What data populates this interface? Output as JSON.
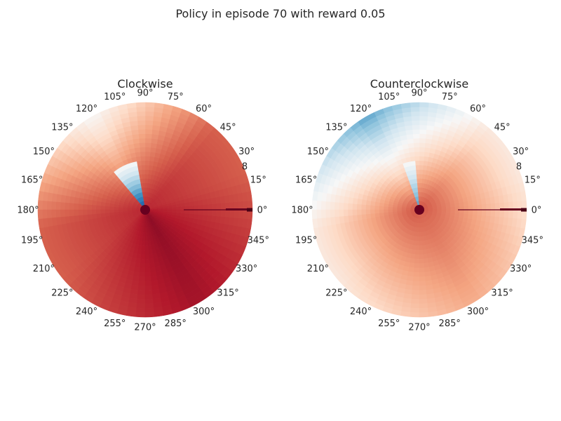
{
  "figure": {
    "suptitle": "Policy in episode 70 with reward 0.05"
  },
  "chart_data": [
    {
      "type": "heatmap",
      "projection": "polar",
      "title": "Clockwise",
      "angle_tick_labels": [
        "0°",
        "15°",
        "30°",
        "45°",
        "60°",
        "75°",
        "90°",
        "105°",
        "120°",
        "135°",
        "150°",
        "165°",
        "180°",
        "195°",
        "210°",
        "225°",
        "240°",
        "255°",
        "270°",
        "285°",
        "300°",
        "315°",
        "330°",
        "345°"
      ],
      "radial_tick_label": "8",
      "colormap": "RdBu_r",
      "grid": false,
      "radial_range": [
        0,
        10
      ],
      "dominant_value": 0.92,
      "field": {
        "base_near": 0.88,
        "base_far": 0.8,
        "upper_left_light_level": 0.58,
        "blue_wedge_angle_deg": [
          100,
          128
        ],
        "blue_wedge_min_value": 0.05,
        "dark_lower_right_value": 1.0
      },
      "marker_line": {
        "angle_deg": 0,
        "from_r": 3.6,
        "to_r": 10,
        "color": "#67001f"
      }
    },
    {
      "type": "heatmap",
      "projection": "polar",
      "title": "Counterclockwise",
      "angle_tick_labels": [
        "0°",
        "15°",
        "30°",
        "45°",
        "60°",
        "75°",
        "90°",
        "105°",
        "120°",
        "135°",
        "150°",
        "165°",
        "180°",
        "195°",
        "210°",
        "225°",
        "240°",
        "255°",
        "270°",
        "285°",
        "300°",
        "315°",
        "330°",
        "345°"
      ],
      "radial_tick_label": "8",
      "colormap": "RdBu_r",
      "grid": false,
      "radial_range": [
        0,
        10
      ],
      "dominant_value": 0.62,
      "field": {
        "base_near": 0.82,
        "base_far": 0.55,
        "upper_left_light_level": 0.5,
        "blue_wedge_angle_deg": [
          95,
          112
        ],
        "blue_wedge_min_value": 0.2,
        "dark_lower_right_value": 0.78
      },
      "marker_line": {
        "angle_deg": 0,
        "from_r": 3.6,
        "to_r": 10,
        "color": "#67001f"
      }
    }
  ]
}
